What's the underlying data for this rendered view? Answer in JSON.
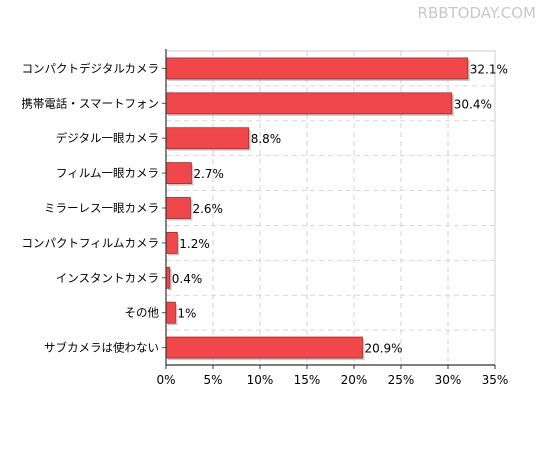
{
  "watermark": "RBBTODAY.COM",
  "chart_data": {
    "type": "bar",
    "orientation": "horizontal",
    "categories": [
      "コンパクトデジタルカメラ",
      "携帯電話・スマートフォン",
      "デジタル一眼カメラ",
      "フィルム一眼カメラ",
      "ミラーレス一眼カメラ",
      "コンパクトフィルムカメラ",
      "インスタントカメラ",
      "その他",
      "サブカメラは使わない"
    ],
    "values": [
      32.1,
      30.4,
      8.8,
      2.7,
      2.6,
      1.2,
      0.4,
      1,
      20.9
    ],
    "value_labels": [
      "32.1%",
      "30.4%",
      "8.8%",
      "2.7%",
      "2.6%",
      "1.2%",
      "0.4%",
      "1%",
      "20.9%"
    ],
    "xlim": [
      0,
      35
    ],
    "xticks": [
      0,
      5,
      10,
      15,
      20,
      25,
      30,
      35
    ],
    "xtick_labels": [
      "0%",
      "5%",
      "10%",
      "15%",
      "20%",
      "25%",
      "30%",
      "35%"
    ],
    "grid": true,
    "bar_color": "#f0474a",
    "bar_edge_color": "#a02a2c"
  }
}
